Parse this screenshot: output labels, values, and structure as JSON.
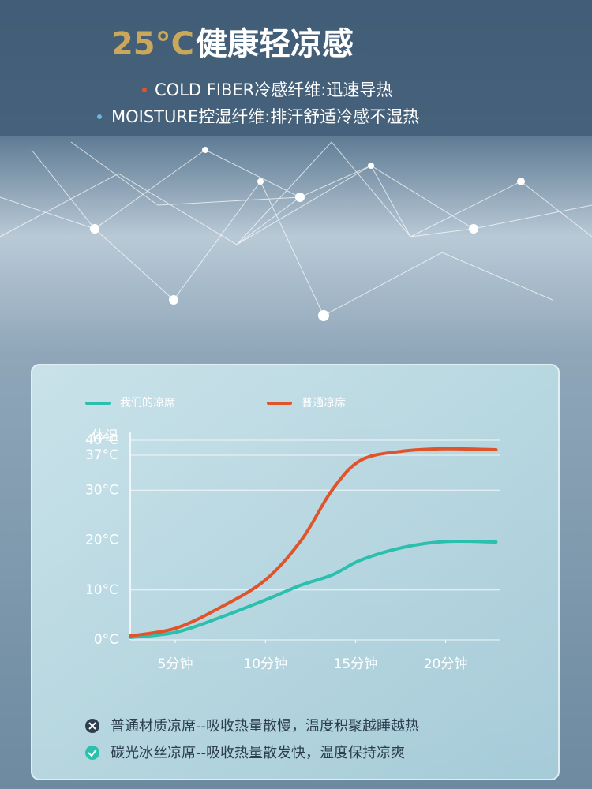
{
  "header": {
    "title_highlight": "25°C",
    "title": "健康轻凉感",
    "features": [
      "COLD FIBER冷感纤维:迅速导热",
      "MOISTURE控湿纤维:排汗舒适冷感不湿热"
    ]
  },
  "chart_data": {
    "type": "line",
    "x": [
      2.5,
      5,
      7.5,
      10,
      12,
      13.7,
      15.3,
      17.6,
      20,
      22.8
    ],
    "xlim": [
      2.5,
      23
    ],
    "xticks": [
      {
        "value": 5,
        "label": "5分钟"
      },
      {
        "value": 10,
        "label": "10分钟"
      },
      {
        "value": 15,
        "label": "15分钟"
      },
      {
        "value": 20,
        "label": "20分钟"
      }
    ],
    "ylim": [
      0,
      40
    ],
    "yticks": [
      {
        "value": 0,
        "label": "0°C"
      },
      {
        "value": 10,
        "label": "10°C"
      },
      {
        "value": 20,
        "label": "20°C"
      },
      {
        "value": 30,
        "label": "30°C"
      },
      {
        "value": 37,
        "label": "37°C"
      },
      {
        "value": 40,
        "label": "40°C"
      }
    ],
    "body_temp_label": "体温",
    "grid": true,
    "series": [
      {
        "name": "我们的凉席",
        "color": "#2bbfae",
        "values": [
          0.5,
          1.5,
          4.5,
          8,
          11,
          13,
          16,
          18.5,
          19.7,
          19.6
        ]
      },
      {
        "name": "普通凉席",
        "color": "#e0542c",
        "values": [
          0.8,
          2.3,
          6.5,
          12,
          20,
          30,
          36,
          37.8,
          38.3,
          38.1
        ]
      }
    ]
  },
  "notes": [
    "普通材质凉席--吸收热量散慢，温度积聚越睡越热",
    "碳光冰丝凉席--吸收热量散发快，温度保持凉爽"
  ]
}
